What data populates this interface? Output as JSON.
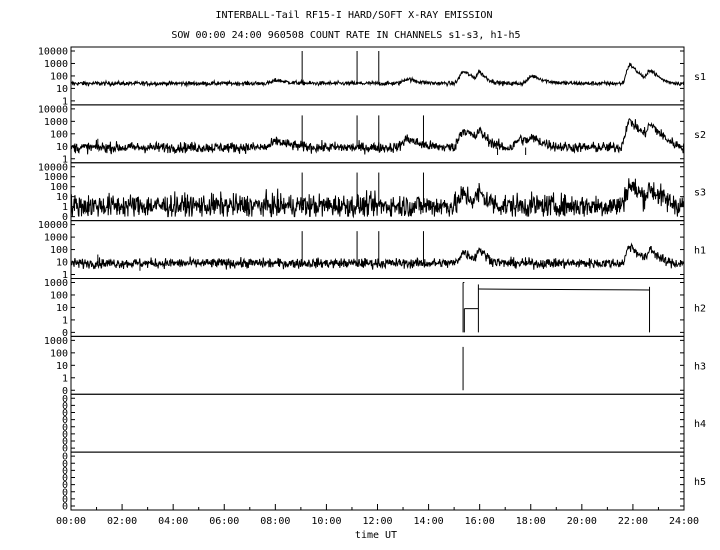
{
  "chart_data": {
    "type": "line",
    "title": "INTERBALL-Tail RF15-I HARD/SOFT X-RAY EMISSION",
    "subtitle": "SOW 00:00 24:00 960508  COUNT RATE IN CHANNELS s1-s3, h1-h5",
    "xlabel": "time UT",
    "x_ticks": [
      "00:00",
      "02:00",
      "04:00",
      "06:00",
      "08:00",
      "10:00",
      "12:00",
      "14:00",
      "16:00",
      "18:00",
      "20:00",
      "22:00",
      "24:00"
    ],
    "xlim": [
      0,
      24
    ],
    "y_scale": "log",
    "grid": false,
    "panels": [
      {
        "name": "s1",
        "y_ticks": [
          "10000",
          "1000",
          "100",
          "10",
          "1"
        ],
        "ylim_decades": [
          0,
          4
        ],
        "baseline": 25,
        "noise_decades": 0.12,
        "bumps": [
          {
            "x": 8.1,
            "peak": 45,
            "width": 0.35
          },
          {
            "x": 13.2,
            "peak": 60,
            "width": 0.3
          },
          {
            "x": 15.4,
            "peak": 220,
            "width": 0.25
          },
          {
            "x": 16.0,
            "peak": 200,
            "width": 0.15
          },
          {
            "x": 18.1,
            "peak": 100,
            "width": 0.3
          },
          {
            "x": 21.9,
            "peak": 800,
            "width": 0.18
          },
          {
            "x": 22.7,
            "peak": 300,
            "width": 0.18
          }
        ],
        "spikes": [
          {
            "x": 9.05,
            "value": 10000
          },
          {
            "x": 11.2,
            "value": 10000
          },
          {
            "x": 12.05,
            "value": 10000
          }
        ]
      },
      {
        "name": "s2",
        "y_ticks": [
          "10000",
          "1000",
          "100",
          "10",
          "1"
        ],
        "ylim_decades": [
          0,
          4
        ],
        "baseline": 8,
        "noise_decades": 0.3,
        "bumps": [
          {
            "x": 8.1,
            "peak": 25,
            "width": 0.35
          },
          {
            "x": 13.2,
            "peak": 40,
            "width": 0.3
          },
          {
            "x": 15.4,
            "peak": 200,
            "width": 0.25
          },
          {
            "x": 16.0,
            "peak": 150,
            "width": 0.15
          },
          {
            "x": 17.6,
            "peak": 40,
            "width": 0.25
          },
          {
            "x": 18.1,
            "peak": 40,
            "width": 0.3
          },
          {
            "x": 21.9,
            "peak": 1000,
            "width": 0.2
          },
          {
            "x": 22.7,
            "peak": 500,
            "width": 0.2
          }
        ],
        "spikes": [
          {
            "x": 1.05,
            "value": 40
          },
          {
            "x": 9.05,
            "value": 3000
          },
          {
            "x": 11.2,
            "value": 3000
          },
          {
            "x": 12.05,
            "value": 3000
          },
          {
            "x": 13.8,
            "value": 3000
          },
          {
            "x": 16.7,
            "value": 2
          },
          {
            "x": 17.8,
            "value": 2
          }
        ]
      },
      {
        "name": "s3",
        "y_ticks": [
          "10000",
          "1000",
          "100",
          "10",
          "1",
          "0"
        ],
        "ylim_decades": [
          -0.5,
          4
        ],
        "baseline": 3,
        "noise_decades": 0.75,
        "bumps": [
          {
            "x": 15.4,
            "peak": 30,
            "width": 0.25
          },
          {
            "x": 16.0,
            "peak": 40,
            "width": 0.15
          },
          {
            "x": 21.9,
            "peak": 200,
            "width": 0.2
          },
          {
            "x": 22.7,
            "peak": 100,
            "width": 0.2
          }
        ],
        "spikes": [
          {
            "x": 9.05,
            "value": 3000
          },
          {
            "x": 11.2,
            "value": 3000
          },
          {
            "x": 12.05,
            "value": 3000
          },
          {
            "x": 13.8,
            "value": 3000
          }
        ]
      },
      {
        "name": "h1",
        "y_ticks": [
          "10000",
          "1000",
          "100",
          "10",
          "1"
        ],
        "ylim_decades": [
          0,
          4
        ],
        "baseline": 8,
        "noise_decades": 0.28,
        "bumps": [
          {
            "x": 15.4,
            "peak": 60,
            "width": 0.25
          },
          {
            "x": 16.0,
            "peak": 100,
            "width": 0.15
          },
          {
            "x": 21.9,
            "peak": 200,
            "width": 0.18
          },
          {
            "x": 22.7,
            "peak": 120,
            "width": 0.15
          }
        ],
        "spikes": [
          {
            "x": 1.05,
            "value": 40
          },
          {
            "x": 9.05,
            "value": 3000
          },
          {
            "x": 11.2,
            "value": 3000
          },
          {
            "x": 12.05,
            "value": 3000
          },
          {
            "x": 13.8,
            "value": 3000
          },
          {
            "x": 2.7,
            "value": 2
          }
        ]
      },
      {
        "name": "h2",
        "y_ticks": [
          "1000",
          "100",
          "10",
          "1",
          "0"
        ],
        "ylim_decades": [
          -1,
          3
        ],
        "steps": [
          {
            "x": [
              15.35,
              15.35
            ],
            "y": [
              0.1,
              1000
            ]
          },
          {
            "x": [
              15.35,
              15.4
            ],
            "y": [
              1000,
              1000
            ]
          },
          {
            "x": [
              15.4,
              15.4
            ],
            "y": [
              0.1,
              8
            ]
          },
          {
            "x": [
              15.4,
              15.95
            ],
            "y": [
              8,
              8
            ]
          },
          {
            "x": [
              15.95,
              15.95
            ],
            "y": [
              0.1,
              700
            ]
          },
          {
            "x": [
              15.95,
              22.65
            ],
            "y": [
              300,
              250
            ]
          },
          {
            "x": [
              22.65,
              22.65
            ],
            "y": [
              0.1,
              450
            ]
          }
        ]
      },
      {
        "name": "h3",
        "y_ticks": [
          "1000",
          "100",
          "10",
          "1",
          "0"
        ],
        "ylim_decades": [
          -1,
          3
        ],
        "steps": [
          {
            "x": [
              15.35,
              15.35
            ],
            "y": [
              0.1,
              300
            ]
          }
        ]
      },
      {
        "name": "h4",
        "y_ticks": [
          "0",
          "0",
          "0",
          "0",
          "0",
          "0",
          "0",
          "0"
        ],
        "empty": true
      },
      {
        "name": "h5",
        "y_ticks": [
          "0",
          "0",
          "0",
          "0",
          "0",
          "0",
          "0",
          "0"
        ],
        "empty": true
      }
    ]
  }
}
